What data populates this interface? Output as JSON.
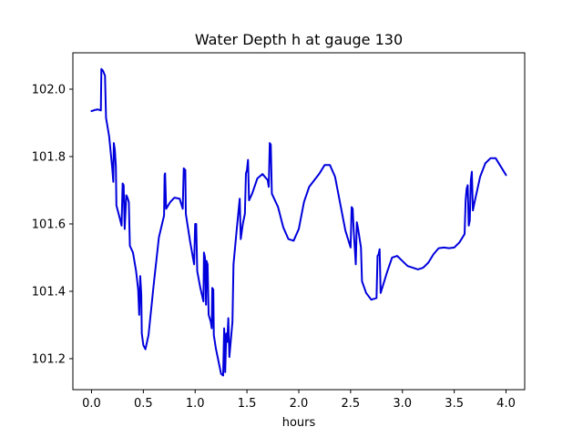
{
  "chart_data": {
    "type": "line",
    "title": "Water Depth h at gauge 130",
    "xlabel": "hours",
    "ylabel": "",
    "xlim": [
      -0.18,
      4.18
    ],
    "ylim": [
      101.108,
      102.108
    ],
    "grid": false,
    "line_color": "#0000dd",
    "xticks": [
      0.0,
      0.5,
      1.0,
      1.5,
      2.0,
      2.5,
      3.0,
      3.5,
      4.0
    ],
    "xtick_labels": [
      "0.0",
      "0.5",
      "1.0",
      "1.5",
      "2.0",
      "2.5",
      "3.0",
      "3.5",
      "4.0"
    ],
    "yticks": [
      101.2,
      101.4,
      101.6,
      101.8,
      102.0
    ],
    "ytick_labels": [
      "101.2",
      "101.4",
      "101.6",
      "101.8",
      "102.0"
    ],
    "series": [
      {
        "name": "",
        "points": [
          [
            0.0,
            101.935
          ],
          [
            0.03,
            101.938
          ],
          [
            0.06,
            101.94
          ],
          [
            0.09,
            101.937
          ],
          [
            0.095,
            102.06
          ],
          [
            0.11,
            102.055
          ],
          [
            0.13,
            102.04
          ],
          [
            0.14,
            101.915
          ],
          [
            0.17,
            101.86
          ],
          [
            0.2,
            101.765
          ],
          [
            0.21,
            101.725
          ],
          [
            0.215,
            101.84
          ],
          [
            0.225,
            101.82
          ],
          [
            0.235,
            101.77
          ],
          [
            0.24,
            101.655
          ],
          [
            0.27,
            101.62
          ],
          [
            0.29,
            101.595
          ],
          [
            0.3,
            101.72
          ],
          [
            0.31,
            101.715
          ],
          [
            0.32,
            101.585
          ],
          [
            0.335,
            101.685
          ],
          [
            0.345,
            101.68
          ],
          [
            0.36,
            101.665
          ],
          [
            0.37,
            101.535
          ],
          [
            0.4,
            101.515
          ],
          [
            0.43,
            101.46
          ],
          [
            0.45,
            101.405
          ],
          [
            0.46,
            101.33
          ],
          [
            0.47,
            101.445
          ],
          [
            0.48,
            101.39
          ],
          [
            0.485,
            101.275
          ],
          [
            0.5,
            101.24
          ],
          [
            0.52,
            101.228
          ],
          [
            0.55,
            101.27
          ],
          [
            0.6,
            101.42
          ],
          [
            0.65,
            101.56
          ],
          [
            0.7,
            101.625
          ],
          [
            0.705,
            101.745
          ],
          [
            0.71,
            101.75
          ],
          [
            0.72,
            101.645
          ],
          [
            0.76,
            101.665
          ],
          [
            0.8,
            101.678
          ],
          [
            0.85,
            101.675
          ],
          [
            0.88,
            101.645
          ],
          [
            0.89,
            101.765
          ],
          [
            0.905,
            101.76
          ],
          [
            0.91,
            101.63
          ],
          [
            0.95,
            101.55
          ],
          [
            0.99,
            101.48
          ],
          [
            1.0,
            101.6
          ],
          [
            1.01,
            101.6
          ],
          [
            1.02,
            101.46
          ],
          [
            1.05,
            101.41
          ],
          [
            1.08,
            101.37
          ],
          [
            1.085,
            101.515
          ],
          [
            1.095,
            101.5
          ],
          [
            1.105,
            101.36
          ],
          [
            1.11,
            101.49
          ],
          [
            1.12,
            101.48
          ],
          [
            1.13,
            101.33
          ],
          [
            1.15,
            101.31
          ],
          [
            1.16,
            101.29
          ],
          [
            1.165,
            101.41
          ],
          [
            1.175,
            101.405
          ],
          [
            1.18,
            101.27
          ],
          [
            1.2,
            101.23
          ],
          [
            1.23,
            101.185
          ],
          [
            1.25,
            101.155
          ],
          [
            1.27,
            101.15
          ],
          [
            1.28,
            101.29
          ],
          [
            1.285,
            101.24
          ],
          [
            1.29,
            101.16
          ],
          [
            1.3,
            101.275
          ],
          [
            1.31,
            101.25
          ],
          [
            1.32,
            101.32
          ],
          [
            1.33,
            101.205
          ],
          [
            1.36,
            101.31
          ],
          [
            1.37,
            101.48
          ],
          [
            1.4,
            101.58
          ],
          [
            1.43,
            101.675
          ],
          [
            1.44,
            101.555
          ],
          [
            1.46,
            101.6
          ],
          [
            1.48,
            101.63
          ],
          [
            1.49,
            101.75
          ],
          [
            1.5,
            101.76
          ],
          [
            1.51,
            101.79
          ],
          [
            1.52,
            101.67
          ],
          [
            1.55,
            101.69
          ],
          [
            1.6,
            101.735
          ],
          [
            1.65,
            101.748
          ],
          [
            1.7,
            101.73
          ],
          [
            1.71,
            101.71
          ],
          [
            1.72,
            101.84
          ],
          [
            1.73,
            101.835
          ],
          [
            1.74,
            101.69
          ],
          [
            1.8,
            101.65
          ],
          [
            1.85,
            101.59
          ],
          [
            1.9,
            101.555
          ],
          [
            1.95,
            101.55
          ],
          [
            2.0,
            101.585
          ],
          [
            2.05,
            101.665
          ],
          [
            2.1,
            101.71
          ],
          [
            2.15,
            101.73
          ],
          [
            2.2,
            101.75
          ],
          [
            2.25,
            101.775
          ],
          [
            2.3,
            101.775
          ],
          [
            2.35,
            101.74
          ],
          [
            2.4,
            101.66
          ],
          [
            2.45,
            101.58
          ],
          [
            2.5,
            101.53
          ],
          [
            2.51,
            101.65
          ],
          [
            2.52,
            101.645
          ],
          [
            2.53,
            101.58
          ],
          [
            2.55,
            101.48
          ],
          [
            2.56,
            101.605
          ],
          [
            2.57,
            101.59
          ],
          [
            2.6,
            101.53
          ],
          [
            2.61,
            101.43
          ],
          [
            2.65,
            101.395
          ],
          [
            2.7,
            101.375
          ],
          [
            2.75,
            101.38
          ],
          [
            2.76,
            101.505
          ],
          [
            2.77,
            101.51
          ],
          [
            2.78,
            101.525
          ],
          [
            2.79,
            101.395
          ],
          [
            2.85,
            101.455
          ],
          [
            2.9,
            101.5
          ],
          [
            2.95,
            101.505
          ],
          [
            3.0,
            101.49
          ],
          [
            3.05,
            101.475
          ],
          [
            3.1,
            101.47
          ],
          [
            3.15,
            101.465
          ],
          [
            3.2,
            101.47
          ],
          [
            3.25,
            101.485
          ],
          [
            3.3,
            101.51
          ],
          [
            3.35,
            101.528
          ],
          [
            3.4,
            101.53
          ],
          [
            3.45,
            101.528
          ],
          [
            3.5,
            101.53
          ],
          [
            3.55,
            101.545
          ],
          [
            3.6,
            101.57
          ],
          [
            3.61,
            101.67
          ],
          [
            3.62,
            101.705
          ],
          [
            3.63,
            101.715
          ],
          [
            3.64,
            101.595
          ],
          [
            3.65,
            101.61
          ],
          [
            3.66,
            101.73
          ],
          [
            3.67,
            101.755
          ],
          [
            3.68,
            101.64
          ],
          [
            3.7,
            101.67
          ],
          [
            3.75,
            101.74
          ],
          [
            3.8,
            101.78
          ],
          [
            3.85,
            101.795
          ],
          [
            3.9,
            101.795
          ],
          [
            3.95,
            101.77
          ],
          [
            4.0,
            101.745
          ]
        ]
      }
    ]
  }
}
